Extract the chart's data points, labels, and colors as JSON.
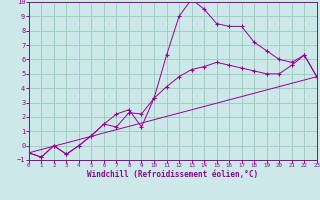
{
  "xlabel": "Windchill (Refroidissement éolien,°C)",
  "background_color": "#cce8e8",
  "grid_color": "#99ccbb",
  "line_color": "#990099",
  "xlim": [
    0,
    23
  ],
  "ylim": [
    -1,
    10
  ],
  "xticks": [
    0,
    1,
    2,
    3,
    4,
    5,
    6,
    7,
    8,
    9,
    10,
    11,
    12,
    13,
    14,
    15,
    16,
    17,
    18,
    19,
    20,
    21,
    22,
    23
  ],
  "yticks": [
    -1,
    0,
    1,
    2,
    3,
    4,
    5,
    6,
    7,
    8,
    9,
    10
  ],
  "series": [
    {
      "x": [
        0,
        1,
        2,
        3,
        4,
        5,
        6,
        7,
        8,
        9,
        10,
        11,
        12,
        13,
        14,
        15,
        16,
        17,
        18,
        19,
        20,
        21,
        22,
        23
      ],
      "y": [
        -0.5,
        -0.8,
        0.0,
        -0.6,
        0.0,
        0.7,
        1.5,
        2.2,
        2.5,
        1.3,
        3.3,
        6.3,
        9.0,
        10.2,
        9.5,
        8.5,
        8.3,
        8.3,
        7.2,
        6.6,
        6.0,
        5.8,
        6.3,
        4.8
      ]
    },
    {
      "x": [
        0,
        1,
        2,
        3,
        4,
        5,
        6,
        7,
        8,
        9,
        10,
        11,
        12,
        13,
        14,
        15,
        16,
        17,
        18,
        19,
        20,
        21,
        22,
        23
      ],
      "y": [
        -0.5,
        -0.8,
        0.0,
        -0.6,
        0.0,
        0.7,
        1.5,
        1.3,
        2.3,
        2.2,
        3.3,
        4.1,
        4.8,
        5.3,
        5.5,
        5.8,
        5.6,
        5.4,
        5.2,
        5.0,
        5.0,
        5.6,
        6.3,
        4.8
      ]
    },
    {
      "x": [
        0,
        23
      ],
      "y": [
        -0.5,
        4.8
      ]
    }
  ]
}
